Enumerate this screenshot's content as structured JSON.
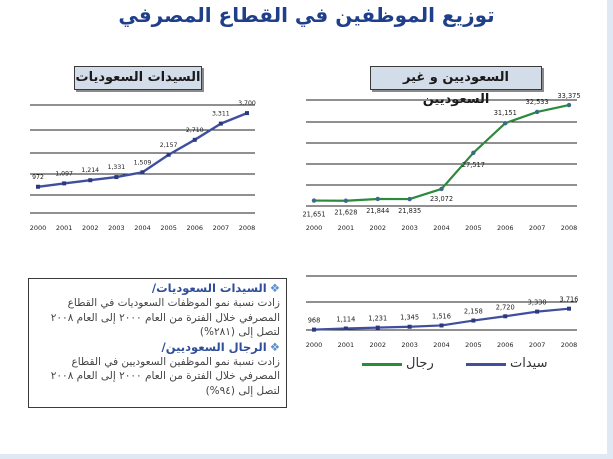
{
  "title": "توزيع الموظفين في القطاع المصرفي",
  "colors": {
    "blue": "#3f4f9e",
    "green": "#2c8a3c",
    "title": "#1f3f8a"
  },
  "chart_data": [
    {
      "id": "women",
      "type": "line",
      "title": "السيدات السعوديات",
      "categories": [
        "2000",
        "2001",
        "2002",
        "2003",
        "2004",
        "2005",
        "2006",
        "2007",
        "2008"
      ],
      "values": [
        972,
        1097,
        1214,
        1331,
        1509,
        2157,
        2710,
        3311,
        3700
      ],
      "labels": [
        "972",
        "1,097",
        "1,214",
        "1,331",
        "1,509",
        "2,157",
        "2,710",
        "3,311",
        "3,700"
      ],
      "ylim": [
        0,
        4000
      ],
      "grid": true
    },
    {
      "id": "total",
      "type": "line",
      "title": "السعوديين و غير السعوديين",
      "categories": [
        "2000",
        "2001",
        "2002",
        "2003",
        "2004",
        "2005",
        "2006",
        "2007",
        "2008"
      ],
      "values": [
        21651,
        21628,
        21844,
        21835,
        23072,
        27517,
        31151,
        32533,
        33375
      ],
      "labels": [
        "21,651",
        "21,628",
        "21,844",
        "21,835",
        "23,072",
        "27,517",
        "31,151",
        "32,533",
        "33,375"
      ],
      "ylim": [
        20000,
        34000
      ],
      "grid": true
    },
    {
      "id": "saudi-split",
      "type": "line",
      "categories": [
        "2000",
        "2001",
        "2002",
        "2003",
        "2004",
        "2005",
        "2006",
        "2007",
        "2008"
      ],
      "series": [
        {
          "name": "سيدات",
          "values": [
            968,
            1114,
            1231,
            1345,
            1516,
            2158,
            2720,
            3330,
            3716
          ],
          "labels": [
            "968",
            "1,114",
            "1,231",
            "1,345",
            "1,516",
            "2,158",
            "2,720",
            "3,330",
            "3,716"
          ]
        }
      ],
      "legend": [
        {
          "name": "رجال",
          "color": "green"
        },
        {
          "name": "سيدات",
          "color": "blue"
        }
      ],
      "ylim": [
        0,
        8000
      ],
      "grid": true
    }
  ],
  "info": {
    "women_heading": "السيدات السعوديات/",
    "women_text": "زادت نسبة نمو الموظفات السعوديات في القطاع المصرفي خلال الفترة من العام ٢٠٠٠ إلى العام ٢٠٠٨ لتصل إلى (٢٨١%)",
    "men_heading": "الرجال السعوديين/",
    "men_text": "زادت نسبة نمو الموظفين السعوديين في القطاع المصرفي خلال الفترة من العام ٢٠٠٠ إلى العام ٢٠٠٨ لتصل إلى (٩٤%)"
  }
}
